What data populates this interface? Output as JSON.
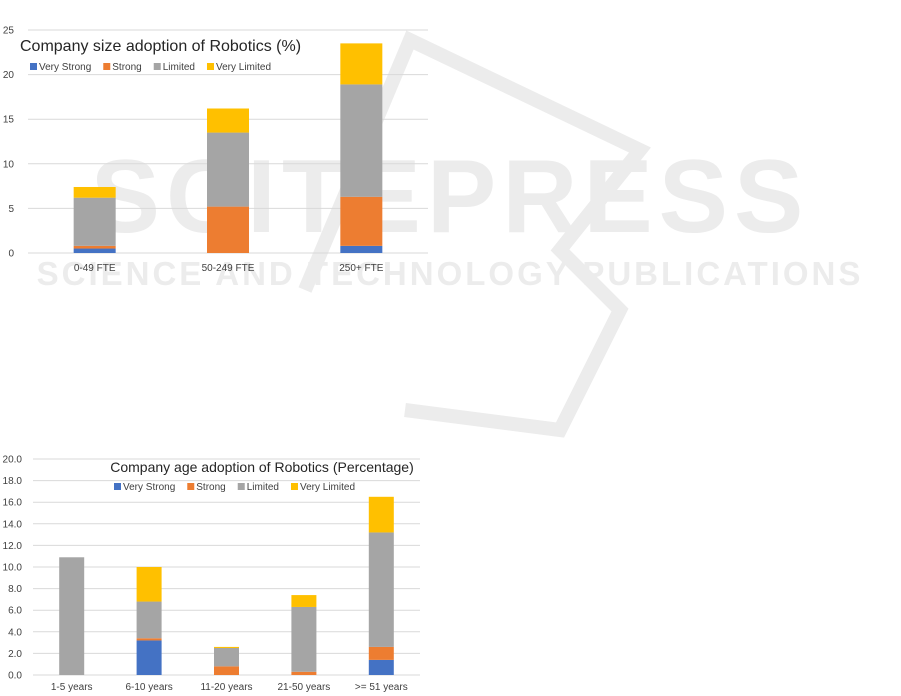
{
  "colors": {
    "Very Strong": "#4472C4",
    "Strong": "#ED7D31",
    "Limited": "#A5A5A5",
    "Very Limited": "#FFC000",
    "grid": "#D9D9D9",
    "text": "#404040"
  },
  "watermark": {
    "main_text": "SCITEPRESS",
    "sub_text": "SCIENCE AND TECHNOLOGY PUBLICATIONS",
    "color": "#ececec"
  },
  "chart_data": [
    {
      "type": "bar",
      "stacked": true,
      "title": "Company size adoption of Robotics (%)",
      "categories": [
        "0-49 FTE",
        "50-249 FTE",
        "250+ FTE"
      ],
      "series": [
        {
          "name": "Very Strong",
          "values": [
            0.5,
            0,
            0.8
          ]
        },
        {
          "name": "Strong",
          "values": [
            0.3,
            5.2,
            5.5
          ]
        },
        {
          "name": "Limited",
          "values": [
            5.4,
            8.3,
            12.6
          ]
        },
        {
          "name": "Very Limited",
          "values": [
            1.2,
            2.7,
            4.6
          ]
        }
      ],
      "ylim": [
        0,
        25
      ],
      "yticks": [
        "0",
        "5",
        "10",
        "15",
        "20",
        "25"
      ],
      "grid": true,
      "legend": "top-left"
    },
    {
      "type": "bar",
      "stacked": true,
      "title": "Company age adoption of Robotics (Percentage)",
      "categories": [
        "1-5 years",
        "6-10 years",
        "11-20 years",
        "21-50 years",
        ">= 51 years"
      ],
      "series": [
        {
          "name": "Very Strong",
          "values": [
            0,
            3.2,
            0,
            0,
            1.4
          ]
        },
        {
          "name": "Strong",
          "values": [
            0,
            0.2,
            0.8,
            0.3,
            1.2
          ]
        },
        {
          "name": "Limited",
          "values": [
            10.9,
            3.4,
            1.7,
            6.0,
            10.6
          ]
        },
        {
          "name": "Very Limited",
          "values": [
            0,
            3.2,
            0.1,
            1.1,
            3.3
          ]
        }
      ],
      "ylim": [
        0,
        20
      ],
      "yticks": [
        "0.0",
        "2.0",
        "4.0",
        "6.0",
        "8.0",
        "10.0",
        "12.0",
        "14.0",
        "16.0",
        "18.0",
        "20.0"
      ],
      "grid": true,
      "legend": "top-center"
    }
  ]
}
